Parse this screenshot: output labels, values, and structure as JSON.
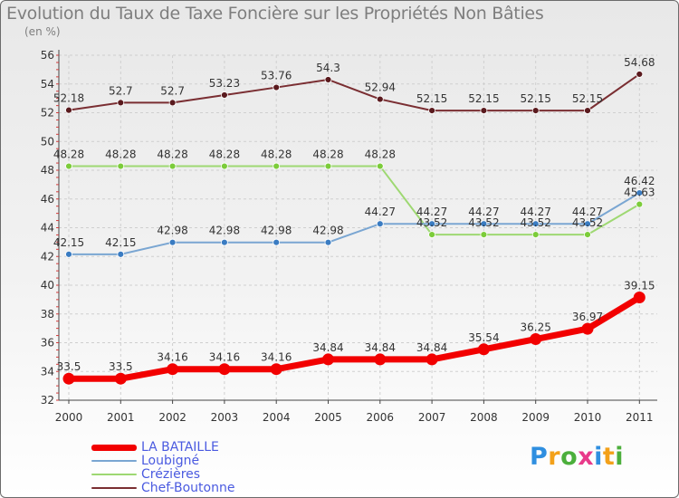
{
  "chart_data": {
    "type": "line",
    "title": "Evolution du Taux de Taxe Foncière sur les Propriétés Non Bâties",
    "ylabel": "(en %)",
    "xlabel": "",
    "ylim": [
      32,
      56
    ],
    "yticks": [
      32,
      34,
      36,
      38,
      40,
      42,
      44,
      46,
      48,
      50,
      52,
      54,
      56
    ],
    "categories": [
      "2000",
      "2001",
      "2002",
      "2003",
      "2004",
      "2005",
      "2006",
      "2007",
      "2008",
      "2009",
      "2010",
      "2011"
    ],
    "grid": true,
    "legend_position": "bottom-left",
    "series": [
      {
        "name": "Chef-Boutonne",
        "color": "#7a2e32",
        "marker_color": "#5a1a1e",
        "values": [
          52.18,
          52.7,
          52.7,
          53.23,
          53.76,
          54.3,
          52.94,
          52.15,
          52.15,
          52.15,
          52.15,
          54.68
        ],
        "labels": [
          "52.18",
          "52.7",
          "52.7",
          "53.23",
          "53.76",
          "54.3",
          "52.94",
          "52.15",
          "52.15",
          "52.15",
          "52.15",
          "54.68"
        ]
      },
      {
        "name": "Crézières",
        "color": "#9ed872",
        "marker_color": "#7ccc3a",
        "values": [
          48.28,
          48.28,
          48.28,
          48.28,
          48.28,
          48.28,
          48.28,
          43.52,
          43.52,
          43.52,
          43.52,
          45.63
        ],
        "labels": [
          "48.28",
          "48.28",
          "48.28",
          "48.28",
          "48.28",
          "48.28",
          "48.28",
          "43.52",
          "43.52",
          "43.52",
          "43.52",
          "45.63"
        ]
      },
      {
        "name": "Loubigné",
        "color": "#7aa6d2",
        "marker_color": "#3a7cc2",
        "values": [
          42.15,
          42.15,
          42.98,
          42.98,
          42.98,
          42.98,
          44.27,
          44.27,
          44.27,
          44.27,
          44.27,
          46.42
        ],
        "labels": [
          "42.15",
          "42.15",
          "42.98",
          "42.98",
          "42.98",
          "42.98",
          "44.27",
          "44.27",
          "44.27",
          "44.27",
          "44.27",
          "46.42"
        ]
      },
      {
        "name": "LA BATAILLE",
        "color": "#f20000",
        "marker_color": "#f20000",
        "values": [
          33.5,
          33.5,
          34.16,
          34.16,
          34.16,
          34.84,
          34.84,
          34.84,
          35.54,
          36.25,
          36.97,
          39.15
        ],
        "labels": [
          "33.5",
          "33.5",
          "34.16",
          "34.16",
          "34.16",
          "34.84",
          "34.84",
          "34.84",
          "35.54",
          "36.25",
          "36.97",
          "39.15"
        ]
      }
    ],
    "legend": [
      "LA BATAILLE",
      "Loubigné",
      "Crézières",
      "Chef-Boutonne"
    ]
  },
  "logo": {
    "text": [
      "P",
      "r",
      "o",
      "x",
      "i",
      "t",
      "i"
    ],
    "colors": [
      "#2f8fe0",
      "#f3a11a",
      "#4caf3c",
      "#e83a8a",
      "#2f8fe0",
      "#f3a11a",
      "#4caf3c"
    ]
  }
}
